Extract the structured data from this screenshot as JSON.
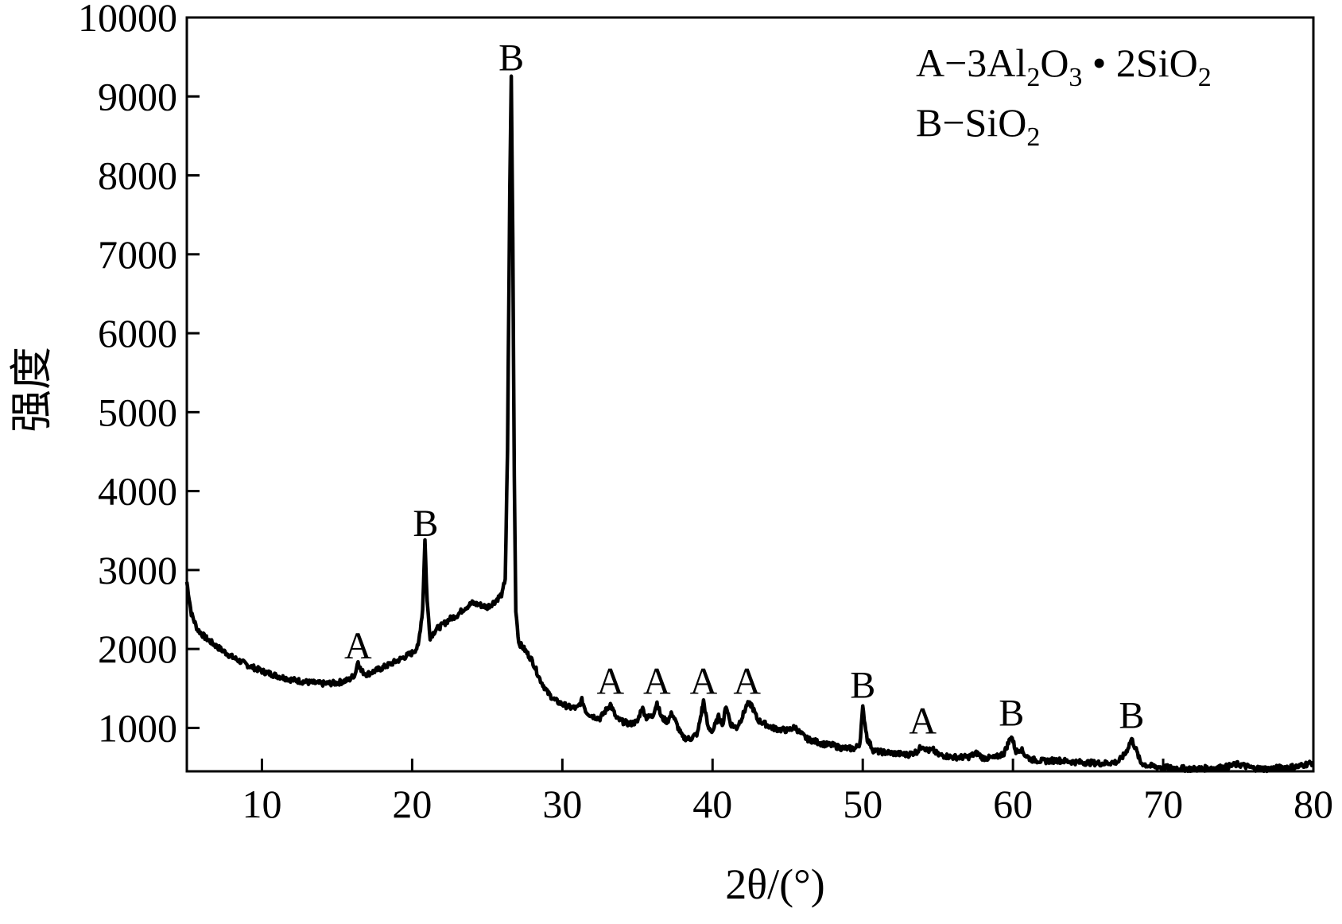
{
  "chart_data": {
    "type": "line",
    "title": "",
    "xlabel": "2θ/(°)",
    "ylabel": "强度",
    "xlim": [
      5,
      80
    ],
    "ylim": [
      450,
      10000
    ],
    "x_ticks": [
      10,
      20,
      30,
      40,
      50,
      60,
      70,
      80
    ],
    "y_ticks": [
      1000,
      2000,
      3000,
      4000,
      5000,
      6000,
      7000,
      8000,
      9000,
      10000
    ],
    "grid": false,
    "legend_position": "top-right",
    "legend": [
      {
        "key": "A",
        "formula": [
          {
            "t": "A−3Al"
          },
          {
            "t": "2",
            "sub": true
          },
          {
            "t": "O"
          },
          {
            "t": "3",
            "sub": true
          },
          {
            "t": " • 2SiO"
          },
          {
            "t": "2",
            "sub": true
          }
        ]
      },
      {
        "key": "B",
        "formula": [
          {
            "t": "B−SiO"
          },
          {
            "t": "2",
            "sub": true
          }
        ]
      }
    ],
    "peak_labels": [
      {
        "label": "A",
        "x": 16.4,
        "y": 1800
      },
      {
        "label": "B",
        "x": 20.9,
        "y": 3350
      },
      {
        "label": "B",
        "x": 26.6,
        "y": 9250
      },
      {
        "label": "A",
        "x": 33.2,
        "y": 1350
      },
      {
        "label": "A",
        "x": 36.3,
        "y": 1350
      },
      {
        "label": "A",
        "x": 39.4,
        "y": 1350
      },
      {
        "label": "A",
        "x": 42.3,
        "y": 1350
      },
      {
        "label": "B",
        "x": 50.0,
        "y": 1300
      },
      {
        "label": "A",
        "x": 54.0,
        "y": 850
      },
      {
        "label": "B",
        "x": 59.9,
        "y": 950
      },
      {
        "label": "B",
        "x": 67.9,
        "y": 920
      }
    ],
    "series": [
      {
        "color": "#000000",
        "points": [
          [
            5.0,
            2850
          ],
          [
            5.3,
            2450
          ],
          [
            5.7,
            2250
          ],
          [
            6.2,
            2150
          ],
          [
            7.0,
            2030
          ],
          [
            8.0,
            1900
          ],
          [
            9.0,
            1800
          ],
          [
            10.0,
            1720
          ],
          [
            11.0,
            1660
          ],
          [
            12.0,
            1610
          ],
          [
            13.0,
            1580
          ],
          [
            14.0,
            1560
          ],
          [
            15.0,
            1570
          ],
          [
            15.8,
            1610
          ],
          [
            16.2,
            1680
          ],
          [
            16.4,
            1850
          ],
          [
            16.6,
            1720
          ],
          [
            17.0,
            1680
          ],
          [
            18.0,
            1760
          ],
          [
            19.0,
            1850
          ],
          [
            20.0,
            1950
          ],
          [
            20.4,
            2030
          ],
          [
            20.7,
            2500
          ],
          [
            20.85,
            3380
          ],
          [
            21.0,
            2600
          ],
          [
            21.2,
            2150
          ],
          [
            21.6,
            2250
          ],
          [
            22.0,
            2300
          ],
          [
            22.5,
            2380
          ],
          [
            23.0,
            2430
          ],
          [
            23.5,
            2520
          ],
          [
            24.0,
            2580
          ],
          [
            24.5,
            2560
          ],
          [
            25.0,
            2530
          ],
          [
            25.5,
            2600
          ],
          [
            26.0,
            2700
          ],
          [
            26.2,
            2900
          ],
          [
            26.35,
            4500
          ],
          [
            26.5,
            7800
          ],
          [
            26.6,
            9280
          ],
          [
            26.7,
            7200
          ],
          [
            26.8,
            4200
          ],
          [
            26.9,
            2500
          ],
          [
            27.1,
            2080
          ],
          [
            27.5,
            1990
          ],
          [
            28.0,
            1850
          ],
          [
            28.5,
            1620
          ],
          [
            29.0,
            1450
          ],
          [
            29.5,
            1350
          ],
          [
            30.0,
            1300
          ],
          [
            30.5,
            1260
          ],
          [
            31.0,
            1250
          ],
          [
            31.3,
            1350
          ],
          [
            31.6,
            1200
          ],
          [
            32.0,
            1150
          ],
          [
            32.5,
            1120
          ],
          [
            33.2,
            1300
          ],
          [
            33.6,
            1120
          ],
          [
            34.0,
            1080
          ],
          [
            34.5,
            1050
          ],
          [
            35.0,
            1080
          ],
          [
            35.3,
            1260
          ],
          [
            35.6,
            1130
          ],
          [
            36.0,
            1150
          ],
          [
            36.3,
            1320
          ],
          [
            36.6,
            1130
          ],
          [
            37.0,
            1080
          ],
          [
            37.3,
            1190
          ],
          [
            37.6,
            1050
          ],
          [
            38.0,
            880
          ],
          [
            38.5,
            860
          ],
          [
            39.0,
            930
          ],
          [
            39.4,
            1340
          ],
          [
            39.7,
            1000
          ],
          [
            40.0,
            960
          ],
          [
            40.4,
            1140
          ],
          [
            40.7,
            1050
          ],
          [
            40.9,
            1290
          ],
          [
            41.2,
            1050
          ],
          [
            41.6,
            1000
          ],
          [
            42.0,
            1150
          ],
          [
            42.3,
            1300
          ],
          [
            42.6,
            1290
          ],
          [
            43.0,
            1100
          ],
          [
            43.5,
            1050
          ],
          [
            44.0,
            1000
          ],
          [
            44.5,
            980
          ],
          [
            45.0,
            970
          ],
          [
            45.5,
            1010
          ],
          [
            45.8,
            940
          ],
          [
            46.3,
            860
          ],
          [
            47.0,
            820
          ],
          [
            47.5,
            790
          ],
          [
            48.0,
            780
          ],
          [
            48.5,
            750
          ],
          [
            49.0,
            740
          ],
          [
            49.5,
            740
          ],
          [
            49.8,
            800
          ],
          [
            50.0,
            1250
          ],
          [
            50.3,
            860
          ],
          [
            50.7,
            720
          ],
          [
            51.0,
            700
          ],
          [
            52.0,
            680
          ],
          [
            53.0,
            660
          ],
          [
            53.6,
            700
          ],
          [
            54.0,
            780
          ],
          [
            54.3,
            710
          ],
          [
            54.7,
            720
          ],
          [
            55.0,
            660
          ],
          [
            56.0,
            630
          ],
          [
            57.0,
            630
          ],
          [
            57.6,
            680
          ],
          [
            58.0,
            620
          ],
          [
            58.8,
            620
          ],
          [
            59.4,
            680
          ],
          [
            59.9,
            900
          ],
          [
            60.2,
            700
          ],
          [
            60.5,
            740
          ],
          [
            60.8,
            660
          ],
          [
            61.2,
            600
          ],
          [
            62.0,
            580
          ],
          [
            63.0,
            590
          ],
          [
            64.0,
            570
          ],
          [
            65.0,
            560
          ],
          [
            66.0,
            550
          ],
          [
            67.0,
            570
          ],
          [
            67.5,
            680
          ],
          [
            67.9,
            860
          ],
          [
            68.2,
            720
          ],
          [
            68.5,
            560
          ],
          [
            69.0,
            520
          ],
          [
            70.0,
            500
          ],
          [
            71.0,
            490
          ],
          [
            72.0,
            480
          ],
          [
            73.0,
            490
          ],
          [
            74.0,
            500
          ],
          [
            75.0,
            540
          ],
          [
            76.0,
            490
          ],
          [
            77.0,
            480
          ],
          [
            78.0,
            500
          ],
          [
            79.0,
            510
          ],
          [
            79.5,
            540
          ],
          [
            80.0,
            560
          ]
        ]
      }
    ]
  }
}
